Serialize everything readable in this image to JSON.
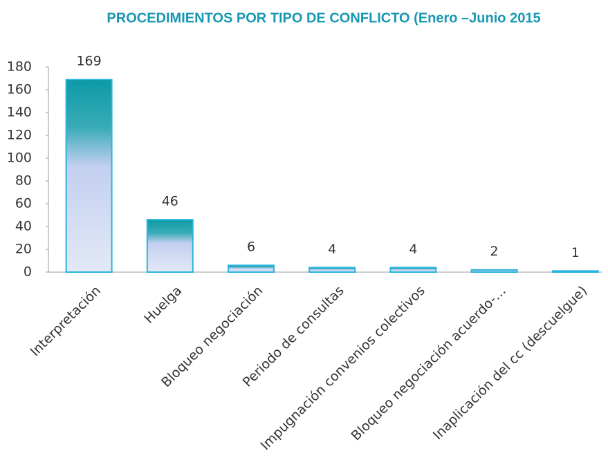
{
  "chart_data": {
    "type": "bar",
    "title": "PROCEDIMIENTOS POR TIPO DE CONFLICTO (Enero –Junio 2015",
    "categories": [
      "Interpretación",
      "Huelga",
      "Bloqueo negociación",
      "Periodo de consultas",
      "Impugnación convenios colectivos",
      "Bloqueo negociación acuerdo-…",
      "Inaplicación del cc (descuelgue)"
    ],
    "values": [
      169,
      46,
      6,
      4,
      4,
      2,
      1
    ],
    "color": "#27b5e0",
    "ylim": [
      0,
      180
    ],
    "yticks": [
      0,
      20,
      40,
      60,
      80,
      100,
      120,
      140,
      160,
      180
    ]
  }
}
